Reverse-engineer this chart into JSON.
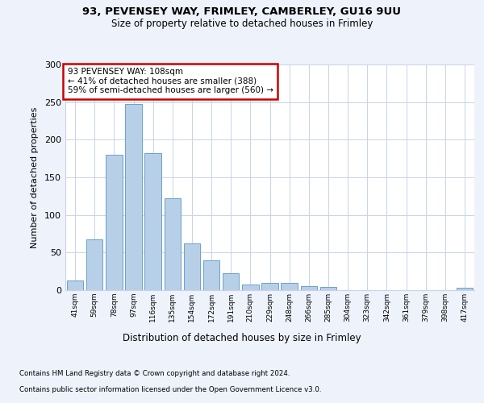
{
  "title1": "93, PEVENSEY WAY, FRIMLEY, CAMBERLEY, GU16 9UU",
  "title2": "Size of property relative to detached houses in Frimley",
  "xlabel": "Distribution of detached houses by size in Frimley",
  "ylabel": "Number of detached properties",
  "categories": [
    "41sqm",
    "59sqm",
    "78sqm",
    "97sqm",
    "116sqm",
    "135sqm",
    "154sqm",
    "172sqm",
    "191sqm",
    "210sqm",
    "229sqm",
    "248sqm",
    "266sqm",
    "285sqm",
    "304sqm",
    "323sqm",
    "342sqm",
    "361sqm",
    "379sqm",
    "398sqm",
    "417sqm"
  ],
  "values": [
    13,
    68,
    180,
    247,
    182,
    122,
    62,
    40,
    22,
    8,
    10,
    10,
    5,
    4,
    0,
    0,
    0,
    0,
    0,
    0,
    3
  ],
  "bar_color": "#b8cfe8",
  "bar_edge_color": "#6aa0cc",
  "annotation_box_color": "#cc0000",
  "annotation_lines": [
    "93 PEVENSEY WAY: 108sqm",
    "← 41% of detached houses are smaller (388)",
    "59% of semi-detached houses are larger (560) →"
  ],
  "ylim": [
    0,
    300
  ],
  "yticks": [
    0,
    50,
    100,
    150,
    200,
    250,
    300
  ],
  "footer_line1": "Contains HM Land Registry data © Crown copyright and database right 2024.",
  "footer_line2": "Contains public sector information licensed under the Open Government Licence v3.0.",
  "bg_color": "#eef2fb",
  "plot_bg_color": "#ffffff",
  "grid_color": "#c8d4e8"
}
